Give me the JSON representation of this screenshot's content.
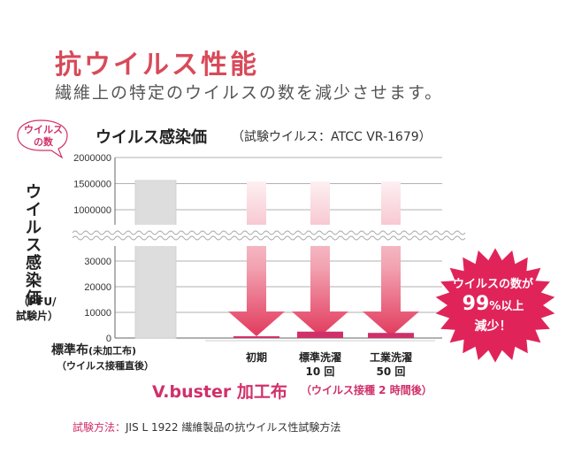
{
  "header": {
    "title": "抗ウイルス性能",
    "subtitle": "繊維上の特定のウイルスの数を減少させます。"
  },
  "bubble": {
    "line1": "ウイルス",
    "line2": "の数"
  },
  "chart_meta": {
    "title": "ウイルス感染価",
    "note": "（試験ウイルス：ATCC VR-1679）",
    "ylabel": "ウイルス感染価",
    "yunit_line1": "（PFU/",
    "yunit_line2": "試験片）"
  },
  "legend": {
    "standard_label": "標準布",
    "standard_label_suffix": "(未加工布)",
    "standard_sub": "（ウイルス接種直後）",
    "vbuster_label": "V.buster 加工布",
    "vbuster_sub": "（ウイルス接種 2 時間後）"
  },
  "burst": {
    "line1": "ウイルスの数が",
    "line2_number": "99",
    "line2_unit": "%以上",
    "line3": "減少！"
  },
  "footer": {
    "method_label": "試験方法：",
    "method_text": "JIS L 1922  繊維製品の抗ウイルス性試験方法"
  },
  "colors": {
    "accent": "#d0306a",
    "title": "#d84a5a",
    "standard_bar": "#dddddd",
    "arrow_top": "#fbe6ea",
    "arrow_bottom": "#e23a5c",
    "burst": "#e0245a"
  },
  "chart_data": {
    "type": "bar",
    "title": "ウイルス感染価",
    "ylabel": "ウイルス感染価（PFU/試験片）",
    "axis_break": true,
    "y_ticks_upper": [
      2000000,
      1500000,
      1000000
    ],
    "y_ticks_lower": [
      30000,
      20000,
      10000,
      0
    ],
    "y_tick_labels_upper": [
      "2000000",
      "1500000",
      "1000000"
    ],
    "y_tick_labels_lower": [
      "30000",
      "20000",
      "10000",
      "0"
    ],
    "categories": [
      "標準布",
      "初期",
      "標準洗濯\n10 回",
      "工業洗濯\n50 回"
    ],
    "category_labels": [
      {
        "line1": "",
        "line2": ""
      },
      {
        "line1": "初期",
        "line2": ""
      },
      {
        "line1": "標準洗濯",
        "line2": "10 回"
      },
      {
        "line1": "工業洗濯",
        "line2": "50 回"
      }
    ],
    "series": [
      {
        "values": [
          1560000,
          200,
          2500,
          2000
        ]
      }
    ],
    "grid": true
  }
}
